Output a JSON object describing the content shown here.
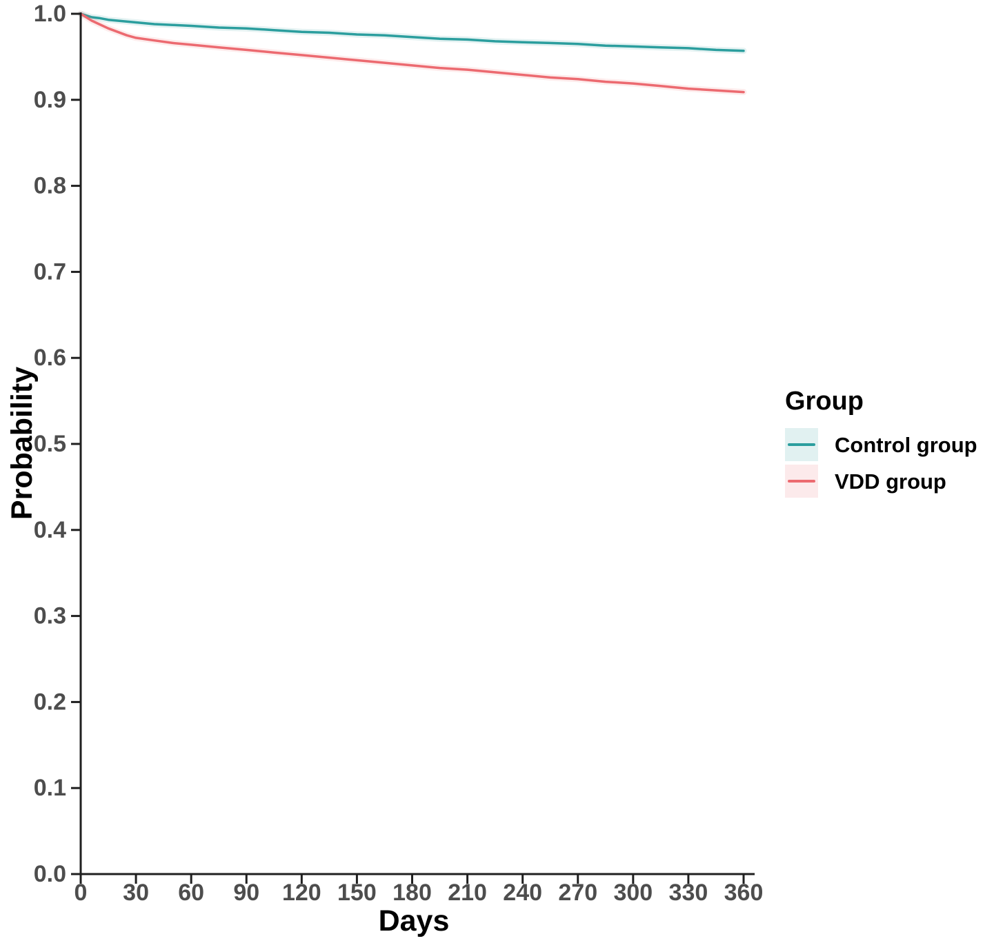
{
  "page": {
    "background": "#FFFFFF"
  },
  "axis_style": {
    "line_color": "#1F1F1F",
    "tick_label_color": "#4D4D4D",
    "axis_title_color": "#000000"
  },
  "chart_data": {
    "type": "line",
    "title": "",
    "xlabel": "Days",
    "ylabel": "Probability",
    "xlim": [
      0,
      360
    ],
    "ylim": [
      0.0,
      1.0
    ],
    "xticks": [
      0,
      30,
      60,
      90,
      120,
      150,
      180,
      210,
      240,
      270,
      300,
      330,
      360
    ],
    "ytick_labels": [
      "0.0",
      "0.1",
      "0.2",
      "0.3",
      "0.4",
      "0.5",
      "0.6",
      "0.7",
      "0.8",
      "0.9",
      "1.0"
    ],
    "grid": false,
    "legend": {
      "title": "Group",
      "position": "right-middle"
    },
    "series": [
      {
        "name": "Control group",
        "color": "#2B9E9E",
        "fill": "rgba(43,158,158,0.14)",
        "x": [
          0,
          3,
          6,
          10,
          15,
          20,
          25,
          30,
          40,
          50,
          60,
          75,
          90,
          105,
          120,
          135,
          150,
          165,
          180,
          195,
          210,
          225,
          240,
          255,
          270,
          285,
          300,
          315,
          330,
          345,
          360
        ],
        "y": [
          1.0,
          0.998,
          0.996,
          0.995,
          0.993,
          0.992,
          0.991,
          0.99,
          0.988,
          0.987,
          0.986,
          0.984,
          0.983,
          0.981,
          0.979,
          0.978,
          0.976,
          0.975,
          0.973,
          0.971,
          0.97,
          0.968,
          0.967,
          0.966,
          0.965,
          0.963,
          0.962,
          0.961,
          0.96,
          0.958,
          0.957
        ]
      },
      {
        "name": "VDD group",
        "color": "#EC6A70",
        "fill": "rgba(236,106,112,0.14)",
        "x": [
          0,
          3,
          6,
          10,
          15,
          20,
          25,
          30,
          40,
          50,
          60,
          75,
          90,
          105,
          120,
          135,
          150,
          165,
          180,
          195,
          210,
          225,
          240,
          255,
          270,
          285,
          300,
          315,
          330,
          345,
          360
        ],
        "y": [
          1.0,
          0.996,
          0.992,
          0.988,
          0.983,
          0.979,
          0.975,
          0.972,
          0.969,
          0.966,
          0.964,
          0.961,
          0.958,
          0.955,
          0.952,
          0.949,
          0.946,
          0.943,
          0.94,
          0.937,
          0.935,
          0.932,
          0.929,
          0.926,
          0.924,
          0.921,
          0.919,
          0.916,
          0.913,
          0.911,
          0.909
        ]
      }
    ]
  }
}
